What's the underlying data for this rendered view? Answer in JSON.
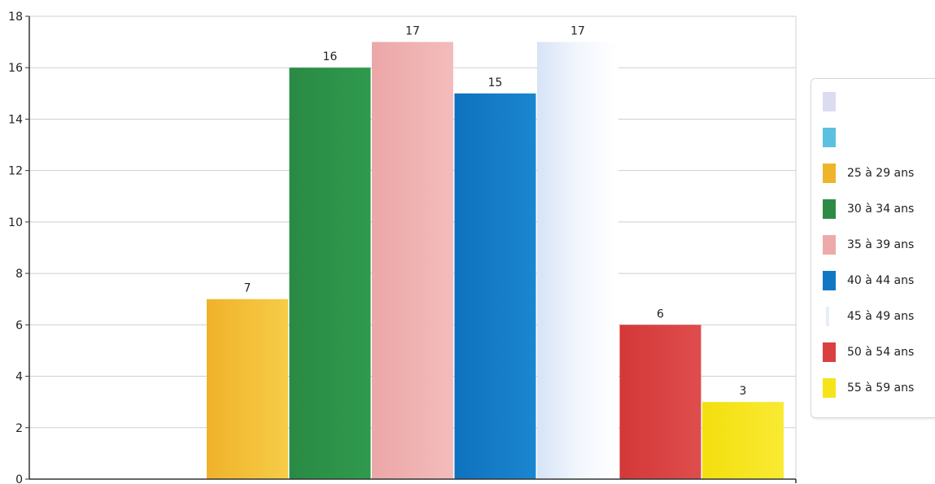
{
  "chart_data": {
    "type": "bar",
    "categories": [
      "",
      "",
      "25 à 29 ans",
      "30 à 34 ans",
      "35 à 39 ans",
      "40 à 44 ans",
      "45 à 49 ans",
      "50 à 54 ans",
      "55 à 59 ans"
    ],
    "values": [
      0,
      0,
      7,
      16,
      17,
      15,
      17,
      6,
      3
    ],
    "value_labels": [
      "",
      "",
      "7",
      "16",
      "17",
      "15",
      "17",
      "6",
      "3"
    ],
    "colors": [
      "#dcdcf0",
      "#5cc0e0",
      "#efb52a",
      "#2e8b45",
      "#eeaaaa",
      "#1177c4",
      "#e6eefa",
      "#d94040",
      "#f5e41a"
    ],
    "ylim": [
      0,
      18
    ],
    "yticks": [
      "0",
      "2",
      "4",
      "6",
      "8",
      "10",
      "12",
      "14",
      "16",
      "18"
    ],
    "grid": true,
    "legend_position": "right",
    "title": "",
    "xlabel": "",
    "ylabel": ""
  }
}
